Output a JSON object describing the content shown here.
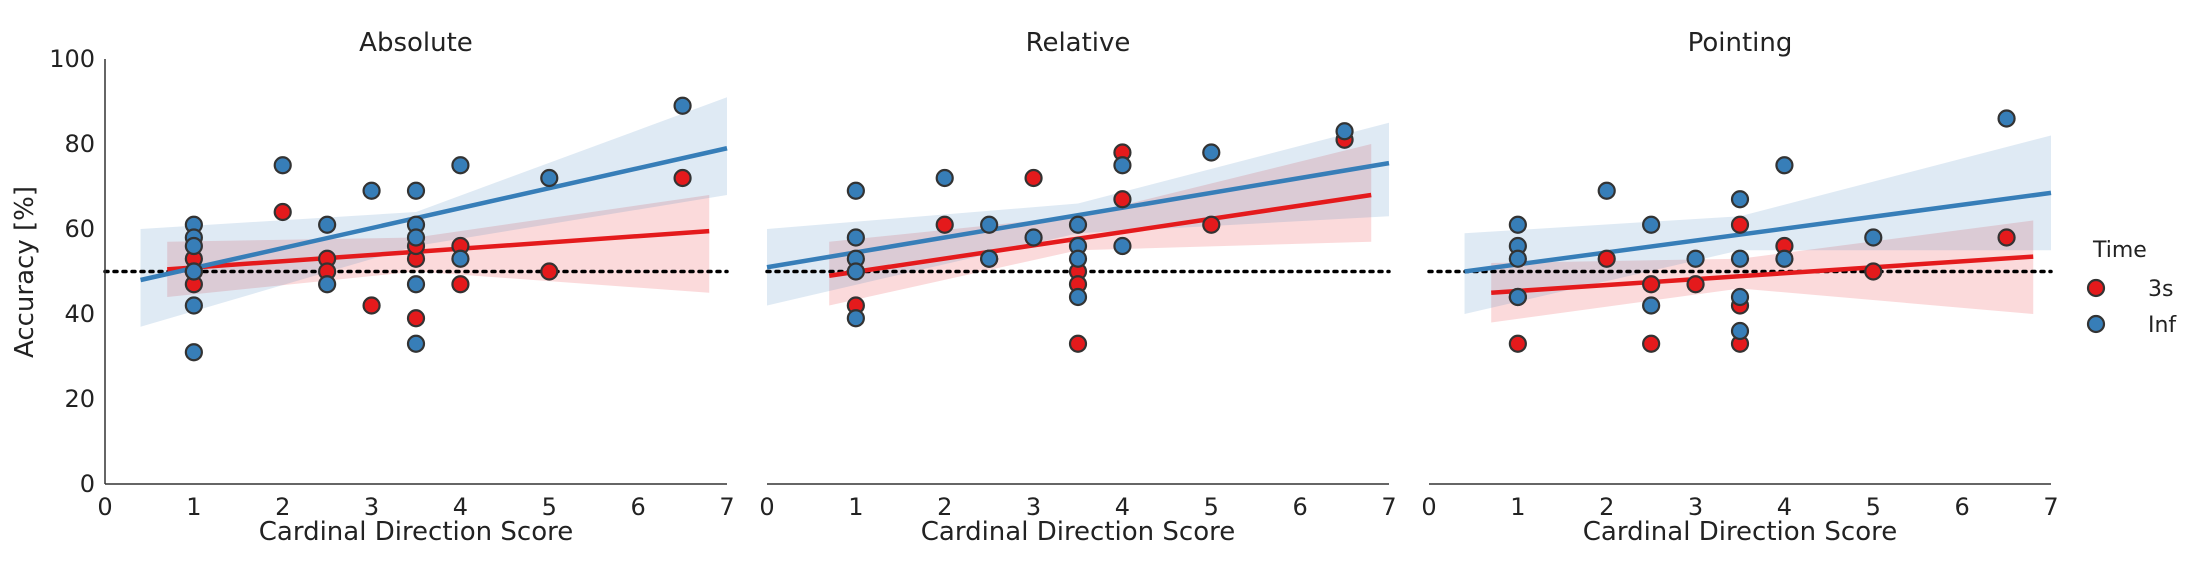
{
  "legend": {
    "title": "Time",
    "entries": [
      {
        "label": "3s",
        "color": "#e41a1c"
      },
      {
        "label": "Inf",
        "color": "#377eb8"
      }
    ]
  },
  "chart_data": [
    {
      "type": "scatter",
      "title": "Absolute",
      "xlabel": "Cardinal Direction Score",
      "ylabel": "Accuracy [%]",
      "xlim": [
        0,
        7
      ],
      "ylim": [
        0,
        100
      ],
      "xticks": [
        0,
        1,
        2,
        3,
        4,
        5,
        6,
        7
      ],
      "yticks": [
        0,
        20,
        40,
        60,
        80,
        100
      ],
      "reference_line_y": 50,
      "series": [
        {
          "name": "3s",
          "color": "#e41a1c",
          "points": [
            [
              1,
              53
            ],
            [
              1,
              47
            ],
            [
              1,
              50
            ],
            [
              2,
              64
            ],
            [
              2.5,
              53
            ],
            [
              2.5,
              50
            ],
            [
              3,
              42
            ],
            [
              3.5,
              39
            ],
            [
              3.5,
              53
            ],
            [
              3.5,
              56
            ],
            [
              4,
              56
            ],
            [
              4,
              47
            ],
            [
              5,
              50
            ],
            [
              6.5,
              72
            ]
          ],
          "fit": {
            "x": [
              0.7,
              6.8
            ],
            "y": [
              50.5,
              59.5
            ]
          },
          "ci": {
            "x": [
              0.7,
              3.5,
              6.8
            ],
            "lower": [
              44,
              50,
              45
            ],
            "upper": [
              57,
              58,
              68
            ]
          }
        },
        {
          "name": "Inf",
          "color": "#377eb8",
          "points": [
            [
              1,
              61
            ],
            [
              1,
              58
            ],
            [
              1,
              56
            ],
            [
              1,
              50
            ],
            [
              1,
              42
            ],
            [
              1,
              31
            ],
            [
              2,
              75
            ],
            [
              2.5,
              61
            ],
            [
              2.5,
              47
            ],
            [
              3,
              69
            ],
            [
              3.5,
              69
            ],
            [
              3.5,
              61
            ],
            [
              3.5,
              58
            ],
            [
              3.5,
              47
            ],
            [
              3.5,
              33
            ],
            [
              4,
              75
            ],
            [
              4,
              53
            ],
            [
              5,
              72
            ],
            [
              6.5,
              89
            ]
          ],
          "fit": {
            "x": [
              0.4,
              7.0
            ],
            "y": [
              48,
              79
            ]
          },
          "ci": {
            "x": [
              0.4,
              3.5,
              7.0
            ],
            "lower": [
              37,
              56,
              68
            ],
            "upper": [
              60,
              64,
              91
            ]
          }
        }
      ]
    },
    {
      "type": "scatter",
      "title": "Relative",
      "xlabel": "Cardinal Direction Score",
      "ylabel": "",
      "xlim": [
        0,
        7
      ],
      "ylim": [
        0,
        100
      ],
      "xticks": [
        0,
        1,
        2,
        3,
        4,
        5,
        6,
        7
      ],
      "reference_line_y": 50,
      "series": [
        {
          "name": "3s",
          "color": "#e41a1c",
          "points": [
            [
              1,
              42
            ],
            [
              2,
              61
            ],
            [
              2.5,
              53
            ],
            [
              3,
              72
            ],
            [
              3.5,
              50
            ],
            [
              3.5,
              47
            ],
            [
              3.5,
              33
            ],
            [
              4,
              78
            ],
            [
              4,
              67
            ],
            [
              5,
              61
            ],
            [
              6.5,
              81
            ]
          ],
          "fit": {
            "x": [
              0.7,
              6.8
            ],
            "y": [
              49,
              68
            ]
          },
          "ci": {
            "x": [
              0.7,
              3.5,
              6.8
            ],
            "lower": [
              42,
              55,
              57
            ],
            "upper": [
              57,
              63,
              80
            ]
          }
        },
        {
          "name": "Inf",
          "color": "#377eb8",
          "points": [
            [
              1,
              69
            ],
            [
              1,
              58
            ],
            [
              1,
              53
            ],
            [
              1,
              50
            ],
            [
              1,
              39
            ],
            [
              2,
              72
            ],
            [
              2.5,
              61
            ],
            [
              2.5,
              53
            ],
            [
              3,
              58
            ],
            [
              3.5,
              61
            ],
            [
              3.5,
              56
            ],
            [
              3.5,
              53
            ],
            [
              3.5,
              44
            ],
            [
              4,
              75
            ],
            [
              4,
              56
            ],
            [
              5,
              78
            ],
            [
              6.5,
              83
            ]
          ],
          "fit": {
            "x": [
              0.0,
              7.0
            ],
            "y": [
              51,
              75.5
            ]
          },
          "ci": {
            "x": [
              0.0,
              3.5,
              7.0
            ],
            "lower": [
              42,
              59,
              63
            ],
            "upper": [
              60,
              66,
              85
            ]
          }
        }
      ]
    },
    {
      "type": "scatter",
      "title": "Pointing",
      "xlabel": "Cardinal Direction Score",
      "ylabel": "",
      "xlim": [
        0,
        7
      ],
      "ylim": [
        0,
        100
      ],
      "xticks": [
        0,
        1,
        2,
        3,
        4,
        5,
        6,
        7
      ],
      "reference_line_y": 50,
      "series": [
        {
          "name": "3s",
          "color": "#e41a1c",
          "points": [
            [
              1,
              33
            ],
            [
              1,
              44
            ],
            [
              2,
              53
            ],
            [
              2.5,
              47
            ],
            [
              2.5,
              33
            ],
            [
              3,
              47
            ],
            [
              3.5,
              61
            ],
            [
              3.5,
              42
            ],
            [
              3.5,
              33
            ],
            [
              4,
              56
            ],
            [
              5,
              50
            ],
            [
              6.5,
              58
            ]
          ],
          "fit": {
            "x": [
              0.7,
              6.8
            ],
            "y": [
              45,
              53.5
            ]
          },
          "ci": {
            "x": [
              0.7,
              3.5,
              6.8
            ],
            "lower": [
              38,
              46,
              40
            ],
            "upper": [
              52,
              53,
              62
            ]
          }
        },
        {
          "name": "Inf",
          "color": "#377eb8",
          "points": [
            [
              1,
              61
            ],
            [
              1,
              56
            ],
            [
              1,
              53
            ],
            [
              1,
              44
            ],
            [
              2,
              69
            ],
            [
              2.5,
              61
            ],
            [
              2.5,
              42
            ],
            [
              3,
              53
            ],
            [
              3.5,
              67
            ],
            [
              3.5,
              53
            ],
            [
              3.5,
              44
            ],
            [
              3.5,
              36
            ],
            [
              4,
              75
            ],
            [
              4,
              53
            ],
            [
              5,
              58
            ],
            [
              6.5,
              86
            ]
          ],
          "fit": {
            "x": [
              0.4,
              7.0
            ],
            "y": [
              50,
              68.5
            ]
          },
          "ci": {
            "x": [
              0.4,
              3.5,
              7.0
            ],
            "lower": [
              40,
              55,
              55
            ],
            "upper": [
              59,
              63,
              82
            ]
          }
        }
      ]
    }
  ]
}
